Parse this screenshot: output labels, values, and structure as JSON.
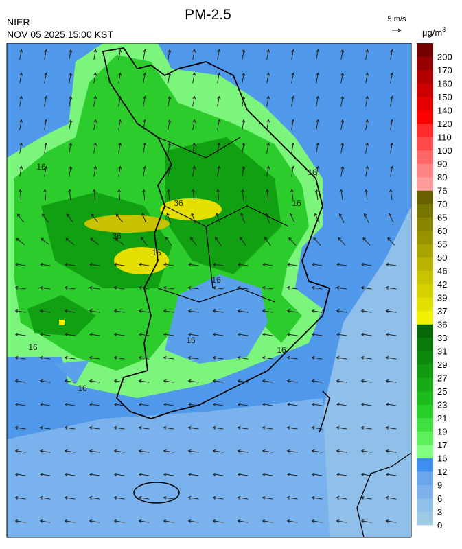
{
  "header": {
    "title": "PM-2.5",
    "agency": "NIER",
    "datetime": "NOV 05 2025 15:00 KST",
    "wind_scale": "5 m/s"
  },
  "colorbar": {
    "unit": "μg/m",
    "unit_sup": "3",
    "levels": [
      {
        "value": 0,
        "color": "#9ecae6"
      },
      {
        "value": 3,
        "color": "#8fc0e8"
      },
      {
        "value": 6,
        "color": "#7db3ea"
      },
      {
        "value": 9,
        "color": "#6aa6ec"
      },
      {
        "value": 12,
        "color": "#3f8ff0"
      },
      {
        "value": 16,
        "color": "#80ff80"
      },
      {
        "value": 17,
        "color": "#5cf05c"
      },
      {
        "value": 19,
        "color": "#40e040"
      },
      {
        "value": 21,
        "color": "#26d026"
      },
      {
        "value": 23,
        "color": "#1cbc1c"
      },
      {
        "value": 25,
        "color": "#16aa16"
      },
      {
        "value": 27,
        "color": "#109a10"
      },
      {
        "value": 29,
        "color": "#0c8a0c"
      },
      {
        "value": 31,
        "color": "#087a08"
      },
      {
        "value": 33,
        "color": "#056805"
      },
      {
        "value": 36,
        "color": "#f2f000"
      },
      {
        "value": 37,
        "color": "#e2e000"
      },
      {
        "value": 39,
        "color": "#d6d200"
      },
      {
        "value": 42,
        "color": "#c8c400"
      },
      {
        "value": 46,
        "color": "#b8b400"
      },
      {
        "value": 50,
        "color": "#a8a400"
      },
      {
        "value": 55,
        "color": "#989400"
      },
      {
        "value": 60,
        "color": "#888400"
      },
      {
        "value": 65,
        "color": "#787400"
      },
      {
        "value": 70,
        "color": "#686000"
      },
      {
        "value": 76,
        "color": "#ff9c9c"
      },
      {
        "value": 80,
        "color": "#ff8484"
      },
      {
        "value": 90,
        "color": "#ff6666"
      },
      {
        "value": 100,
        "color": "#ff4a4a"
      },
      {
        "value": 110,
        "color": "#ff2a2a"
      },
      {
        "value": 120,
        "color": "#ff0000"
      },
      {
        "value": 140,
        "color": "#e40000"
      },
      {
        "value": 150,
        "color": "#cc0000"
      },
      {
        "value": 160,
        "color": "#b20000"
      },
      {
        "value": 170,
        "color": "#960000"
      },
      {
        "value": 200,
        "color": "#740000"
      }
    ]
  },
  "map": {
    "contour_labels": [
      "16",
      "16",
      "16",
      "36",
      "36",
      "16",
      "16",
      "16",
      "16",
      "16",
      "16"
    ]
  }
}
